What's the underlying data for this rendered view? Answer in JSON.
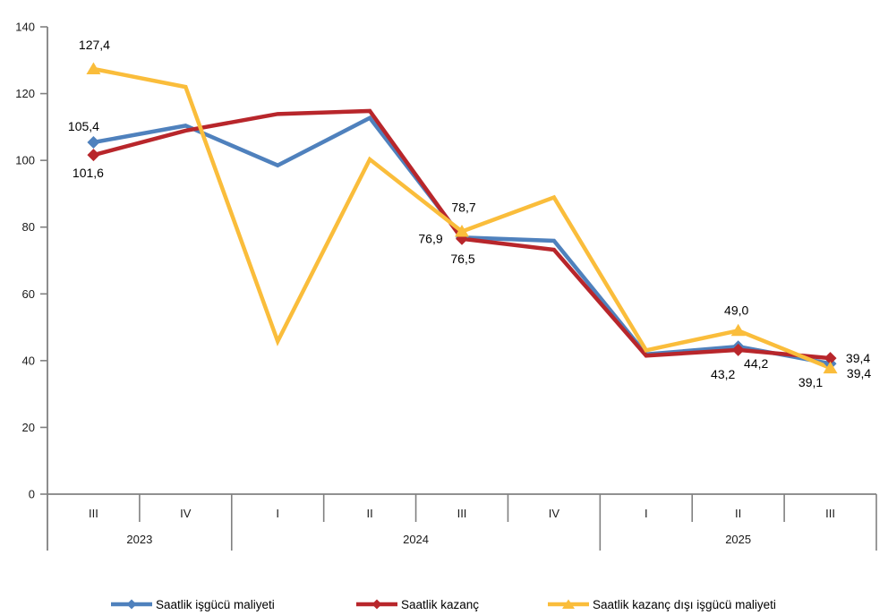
{
  "chart_data": {
    "type": "line",
    "title": "",
    "xlabel": "",
    "ylabel": "",
    "ylim": [
      0,
      140
    ],
    "yticks": [
      0,
      20,
      40,
      60,
      80,
      100,
      120,
      140
    ],
    "grid": false,
    "legend_position": "bottom",
    "x_axis": {
      "quarters": [
        "III",
        "IV",
        "I",
        "II",
        "III",
        "IV",
        "I",
        "II",
        "III"
      ],
      "year_groups": [
        {
          "label": "2023",
          "span": 2
        },
        {
          "label": "2024",
          "span": 4
        },
        {
          "label": "2025",
          "span": 3
        }
      ]
    },
    "series": [
      {
        "name": "Saatlik işgücü maliyeti",
        "color": "#4F81BD",
        "marker": "diamond",
        "values": [
          105.4,
          110.4,
          98.5,
          112.7,
          76.9,
          75.9,
          41.9,
          44.2,
          39.1
        ],
        "point_labels": {
          "0": "105,4",
          "4": "76,9",
          "7": "44,2",
          "8": "39,1"
        }
      },
      {
        "name": "Saatlik kazanç",
        "color": "#B8262B",
        "marker": "diamond",
        "values": [
          101.6,
          108.9,
          113.9,
          114.8,
          76.5,
          73.2,
          41.5,
          43.2,
          39.4
        ],
        "point_labels": {
          "0": "101,6",
          "4": "76,5",
          "7": "43,2",
          "8": "39,4"
        }
      },
      {
        "name": "Saatlik kazanç dışı işgücü maliyeti",
        "color": "#FABD3B",
        "marker": "triangle",
        "values": [
          127.4,
          122.0,
          45.8,
          100.3,
          78.7,
          88.9,
          43.1,
          49.0,
          39.4
        ],
        "point_labels": {
          "0": "127,4",
          "4": "78,7",
          "7": "49,0",
          "8": "39,4"
        }
      }
    ],
    "axis_color": "#808080",
    "tick_label_color": "#1a1a1a",
    "data_label_color": "#000000"
  }
}
